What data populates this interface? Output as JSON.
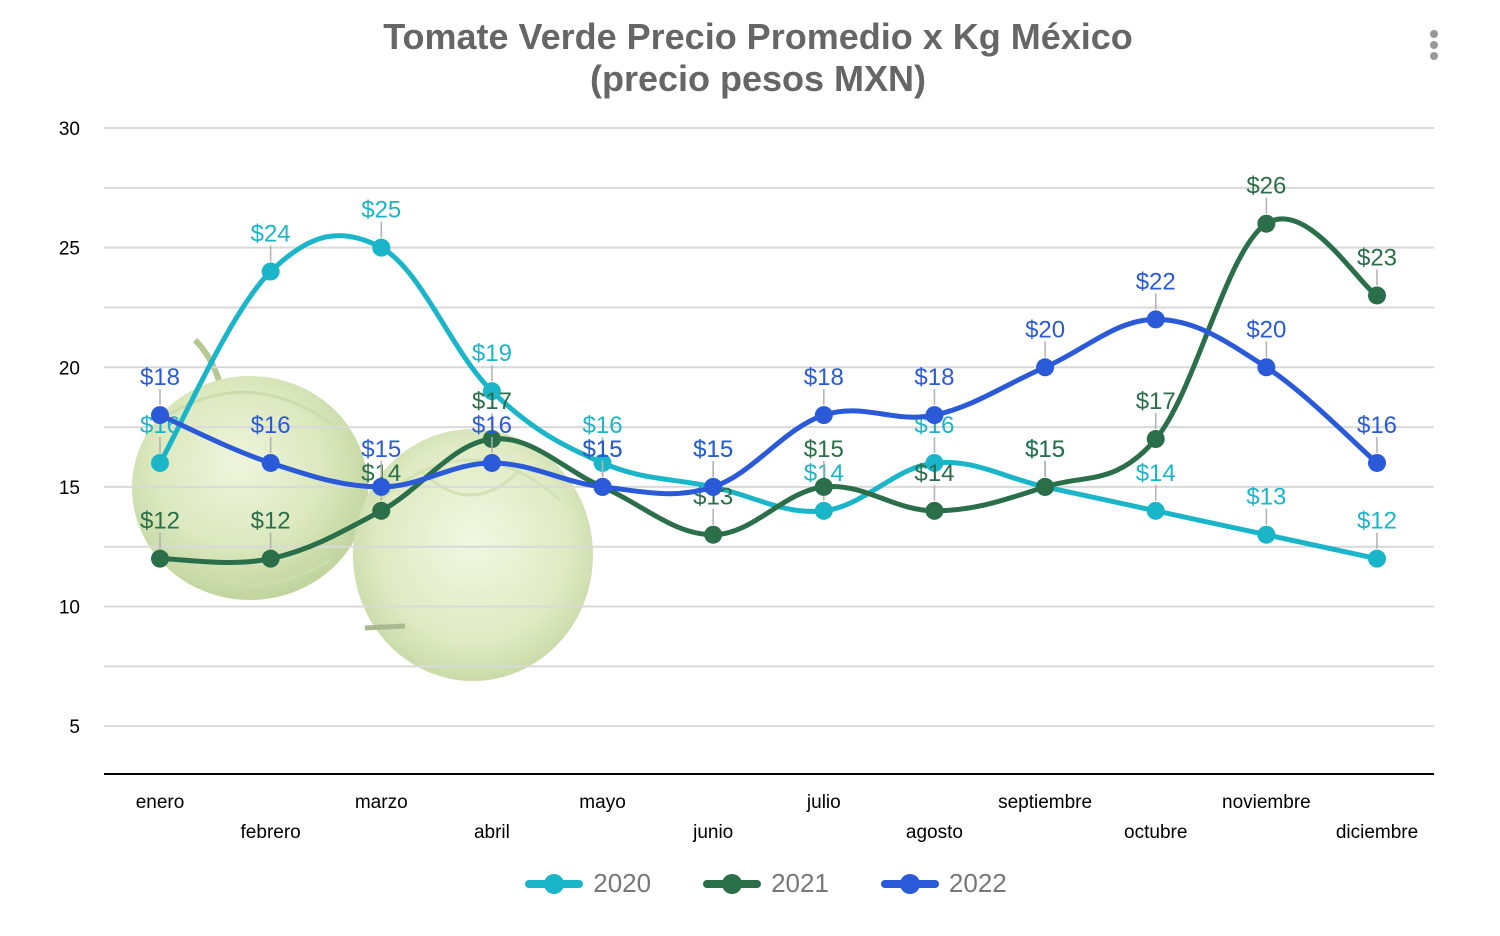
{
  "chart_data": {
    "type": "line",
    "title_lines": [
      "Tomate Verde Precio Promedio x Kg México",
      "(precio pesos MXN)"
    ],
    "xlabel": "",
    "ylabel": "",
    "categories": [
      "enero",
      "febrero",
      "marzo",
      "abril",
      "mayo",
      "junio",
      "julio",
      "agosto",
      "septiembre",
      "octubre",
      "noviembre",
      "diciembre"
    ],
    "ylim": [
      3,
      30
    ],
    "yticks": [
      5,
      10,
      15,
      20,
      25,
      30
    ],
    "grid": true,
    "legend_position": "bottom",
    "series": [
      {
        "name": "2020",
        "color": "#1ab5c8",
        "values": [
          16,
          24,
          25,
          19,
          16,
          15,
          14,
          16,
          15,
          14,
          13,
          12
        ],
        "labels": [
          "$16",
          "$24",
          "$25",
          "$19",
          "$16",
          "$15",
          "$14",
          "$16",
          "$15",
          "$14",
          "$13",
          "$12"
        ]
      },
      {
        "name": "2021",
        "color": "#2a6e4a",
        "values": [
          12,
          12,
          14,
          17,
          15,
          13,
          15,
          14,
          15,
          17,
          26,
          23
        ],
        "labels": [
          "$12",
          "$12",
          "$14",
          "$17",
          "$15",
          "$13",
          "$15",
          "$14",
          "$15",
          "$17",
          "$26",
          "$23"
        ]
      },
      {
        "name": "2022",
        "color": "#2a5ad8",
        "values": [
          18,
          16,
          15,
          16,
          15,
          15,
          18,
          18,
          20,
          22,
          20,
          16
        ],
        "labels": [
          "$18",
          "$16",
          "$15",
          "$16",
          "$15",
          "$15",
          "$18",
          "$18",
          "$20",
          "$22",
          "$20",
          "$16"
        ]
      }
    ]
  },
  "colors": {
    "grid": "#d9d9d9",
    "axis": "#000000",
    "title": "#666666",
    "legend_text": "#777777"
  },
  "background_image": "tomatillo-fruits-illustration",
  "menu_icon": "more-vertical-icon"
}
